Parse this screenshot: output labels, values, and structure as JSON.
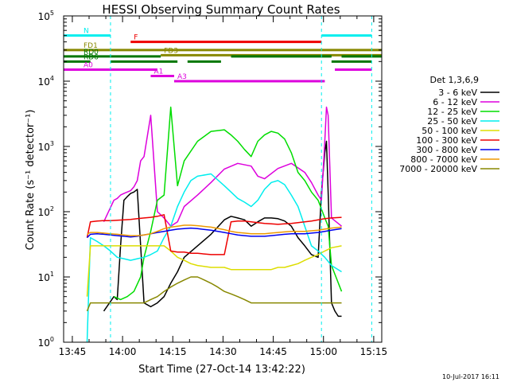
{
  "chart_data": {
    "type": "line",
    "title": "HESSI Observing Summary Count Rates",
    "xlabel": "Start Time (27-Oct-14 13:42:22)",
    "ylabel": "Count Rate (s⁻¹ detector⁻¹)",
    "x_unit": "minutes since 13:42:22",
    "xlim": [
      0,
      95
    ],
    "ylim": [
      1,
      100000
    ],
    "y_scale": "log",
    "x_ticks": [
      {
        "label": "13:45",
        "x": 2.6
      },
      {
        "label": "14:00",
        "x": 17.6
      },
      {
        "label": "14:15",
        "x": 32.6
      },
      {
        "label": "14:30",
        "x": 47.6
      },
      {
        "label": "14:45",
        "x": 62.6
      },
      {
        "label": "15:00",
        "x": 77.6
      },
      {
        "label": "15:15",
        "x": 92.6
      }
    ],
    "y_ticks": [
      {
        "base": "10",
        "exp": "0",
        "v": 1
      },
      {
        "base": "10",
        "exp": "1",
        "v": 10
      },
      {
        "base": "10",
        "exp": "2",
        "v": 100
      },
      {
        "base": "10",
        "exp": "3",
        "v": 1000
      },
      {
        "base": "10",
        "exp": "4",
        "v": 10000
      },
      {
        "base": "10",
        "exp": "5",
        "v": 100000
      }
    ],
    "legend_title": "Det 1,3,6,9",
    "legend_placement": "right",
    "series": [
      {
        "name": "3 - 6 keV",
        "color": "#000000",
        "x": [
          10,
          12,
          15,
          16,
          17,
          18,
          19,
          20,
          21,
          22,
          24,
          26,
          28,
          30,
          32,
          34,
          36,
          40,
          44,
          48,
          50,
          52,
          54,
          56,
          58,
          60,
          62,
          64,
          66,
          68,
          70,
          72,
          74,
          76,
          77,
          78,
          78.5,
          79,
          80,
          81,
          82,
          83
        ],
        "y": [
          null,
          3,
          5,
          4.5,
          30,
          150,
          170,
          190,
          200,
          220,
          4,
          3.5,
          4,
          5,
          8,
          12,
          20,
          30,
          45,
          75,
          85,
          80,
          75,
          60,
          70,
          80,
          80,
          78,
          72,
          60,
          40,
          30,
          22,
          20,
          200,
          800,
          1200,
          200,
          4,
          3,
          2.5,
          2.5
        ]
      },
      {
        "name": "6 - 12 keV",
        "color": "#dd00dd",
        "x": [
          10,
          12,
          15,
          16,
          17,
          18,
          19,
          20,
          21,
          22,
          23,
          24,
          26,
          28,
          30,
          32,
          34,
          36,
          40,
          44,
          48,
          52,
          56,
          58,
          60,
          64,
          68,
          72,
          74,
          76,
          77,
          78,
          78.5,
          79,
          80,
          83
        ],
        "y": [
          null,
          70,
          150,
          160,
          180,
          190,
          200,
          210,
          240,
          300,
          600,
          700,
          3000,
          100,
          80,
          60,
          70,
          120,
          180,
          280,
          450,
          550,
          500,
          350,
          320,
          460,
          550,
          400,
          280,
          180,
          150,
          1200,
          4000,
          3000,
          80,
          60
        ]
      },
      {
        "name": "12 - 25 keV",
        "color": "#00dd00",
        "x": [
          10,
          15,
          17,
          19,
          21,
          23,
          24,
          26,
          28,
          30,
          32,
          34,
          36,
          40,
          44,
          48,
          50,
          52,
          54,
          56,
          58,
          60,
          62,
          64,
          66,
          68,
          70,
          72,
          74,
          76,
          78,
          79,
          80,
          83
        ],
        "y": [
          null,
          5,
          4.5,
          5,
          6,
          10,
          20,
          50,
          150,
          180,
          4000,
          250,
          600,
          1200,
          1700,
          1800,
          1500,
          1200,
          900,
          700,
          1200,
          1500,
          1700,
          1600,
          1300,
          800,
          400,
          300,
          200,
          150,
          80,
          60,
          15,
          6
        ]
      },
      {
        "name": "25 - 50 keV",
        "color": "#00eeee",
        "x": [
          7,
          8,
          10,
          12,
          14,
          16,
          18,
          20,
          22,
          24,
          26,
          28,
          30,
          32,
          34,
          36,
          38,
          40,
          44,
          48,
          50,
          52,
          54,
          56,
          58,
          60,
          62,
          64,
          66,
          68,
          70,
          72,
          74,
          76,
          78,
          80,
          83
        ],
        "y": [
          1,
          40,
          35,
          30,
          25,
          20,
          19,
          18,
          19,
          20,
          22,
          25,
          40,
          60,
          120,
          200,
          300,
          350,
          380,
          250,
          200,
          160,
          140,
          120,
          150,
          220,
          280,
          300,
          260,
          180,
          120,
          60,
          30,
          25,
          20,
          15,
          12
        ]
      },
      {
        "name": "50 - 100 keV",
        "color": "#dddd00",
        "x": [
          7,
          8,
          10,
          12,
          14,
          16,
          18,
          20,
          22,
          24,
          26,
          28,
          30,
          32,
          34,
          36,
          38,
          40,
          44,
          48,
          50,
          52,
          54,
          56,
          58,
          60,
          62,
          64,
          66,
          68,
          70,
          72,
          74,
          76,
          78,
          80,
          83
        ],
        "y": [
          5,
          30,
          30,
          30,
          30,
          30,
          30,
          30,
          30,
          30,
          30,
          30,
          30,
          25,
          20,
          18,
          16,
          15,
          14,
          14,
          13,
          13,
          13,
          13,
          13,
          13,
          13,
          14,
          14,
          15,
          16,
          18,
          20,
          22,
          25,
          28,
          30
        ]
      },
      {
        "name": "100 - 300 keV",
        "color": "#ee0000",
        "x": [
          7,
          8,
          10,
          12,
          14,
          16,
          18,
          20,
          22,
          24,
          26,
          28,
          30,
          32,
          34,
          36,
          38,
          40,
          44,
          48,
          50,
          52,
          54,
          56,
          58,
          60,
          62,
          64,
          66,
          68,
          70,
          72,
          74,
          76,
          78,
          80,
          83
        ],
        "y": [
          40,
          70,
          72,
          73,
          73,
          74,
          75,
          76,
          78,
          80,
          82,
          85,
          90,
          25,
          24,
          24,
          23,
          23,
          22,
          22,
          70,
          72,
          72,
          70,
          68,
          66,
          65,
          64,
          65,
          66,
          68,
          70,
          72,
          75,
          78,
          80,
          82
        ]
      },
      {
        "name": "300 - 800 keV",
        "color": "#0000ee",
        "x": [
          7,
          8,
          10,
          12,
          14,
          16,
          18,
          20,
          22,
          24,
          26,
          28,
          30,
          32,
          34,
          36,
          38,
          40,
          44,
          48,
          50,
          52,
          54,
          56,
          58,
          60,
          62,
          64,
          66,
          68,
          70,
          72,
          74,
          76,
          78,
          80,
          83
        ],
        "y": [
          40,
          45,
          46,
          45,
          44,
          43,
          42,
          41,
          42,
          44,
          46,
          48,
          50,
          52,
          54,
          55,
          56,
          55,
          52,
          48,
          46,
          44,
          43,
          42,
          42,
          42,
          43,
          44,
          45,
          46,
          46,
          46,
          47,
          48,
          50,
          52,
          55
        ]
      },
      {
        "name": "800 - 7000 keV",
        "color": "#ee9900",
        "x": [
          7,
          8,
          10,
          12,
          14,
          16,
          18,
          20,
          22,
          24,
          26,
          28,
          30,
          32,
          34,
          36,
          38,
          40,
          44,
          48,
          50,
          52,
          54,
          56,
          58,
          60,
          62,
          64,
          66,
          68,
          70,
          72,
          74,
          76,
          78,
          80,
          83
        ],
        "y": [
          45,
          48,
          48,
          47,
          46,
          45,
          44,
          43,
          43,
          44,
          46,
          50,
          55,
          58,
          60,
          62,
          62,
          61,
          58,
          53,
          50,
          48,
          47,
          46,
          46,
          46,
          47,
          48,
          49,
          50,
          50,
          50,
          51,
          52,
          54,
          56,
          58
        ]
      },
      {
        "name": "7000 - 20000 keV",
        "color": "#888800",
        "x": [
          7,
          8,
          10,
          12,
          14,
          16,
          18,
          20,
          22,
          24,
          26,
          28,
          30,
          32,
          34,
          36,
          38,
          40,
          42,
          44,
          46,
          48,
          50,
          52,
          54,
          56,
          58,
          60,
          62,
          64,
          66,
          68,
          70,
          72,
          74,
          76,
          78,
          80,
          83
        ],
        "y": [
          3,
          4,
          4,
          4,
          4,
          4,
          4,
          4,
          4,
          4,
          4.5,
          5,
          6,
          7,
          8,
          9,
          10,
          10,
          9,
          8,
          7,
          6,
          5.5,
          5,
          4.5,
          4,
          4,
          4,
          4,
          4,
          4,
          4,
          4,
          4,
          4,
          4,
          4,
          4,
          4
        ]
      }
    ],
    "flag_bars": [
      {
        "label": "N",
        "color": "#00eeee",
        "yv": 50000,
        "segments": [
          [
            -3,
            14
          ],
          [
            77,
            92
          ]
        ]
      },
      {
        "label": "F",
        "color": "#ee0000",
        "yv": 40000,
        "segments": [
          [
            20,
            77
          ]
        ]
      },
      {
        "label": "FD1",
        "color": "#888800",
        "yv": 30000,
        "segments": [
          [
            -3,
            95
          ]
        ]
      },
      {
        "label": "FD3",
        "color": "#888800",
        "yv": 25000,
        "segments": [
          [
            29,
            95
          ]
        ]
      },
      {
        "label": "RD0",
        "color": "#007700",
        "yv": 24000,
        "segments": [
          [
            -3,
            29
          ],
          [
            50,
            80
          ],
          [
            83,
            95
          ]
        ]
      },
      {
        "label": "RD6",
        "color": "#007700",
        "yv": 20000,
        "segments": [
          [
            -3,
            8
          ],
          [
            14,
            34
          ],
          [
            37,
            47
          ],
          [
            80,
            92
          ]
        ]
      },
      {
        "label": "A0",
        "color": "#dd00dd",
        "yv": 15000,
        "segments": [
          [
            -3,
            28
          ],
          [
            81,
            92
          ]
        ]
      },
      {
        "label": "A1",
        "color": "#dd00dd",
        "yv": 12000,
        "segments": [
          [
            26,
            33
          ]
        ]
      },
      {
        "label": "A3",
        "color": "#dd00dd",
        "yv": 10000,
        "segments": [
          [
            33,
            78
          ]
        ]
      }
    ],
    "vertical_markers": {
      "color": "#00eeee",
      "x": [
        14,
        77,
        92
      ]
    }
  },
  "footer": {
    "timestamp": "10-Jul-2017 16:11"
  }
}
